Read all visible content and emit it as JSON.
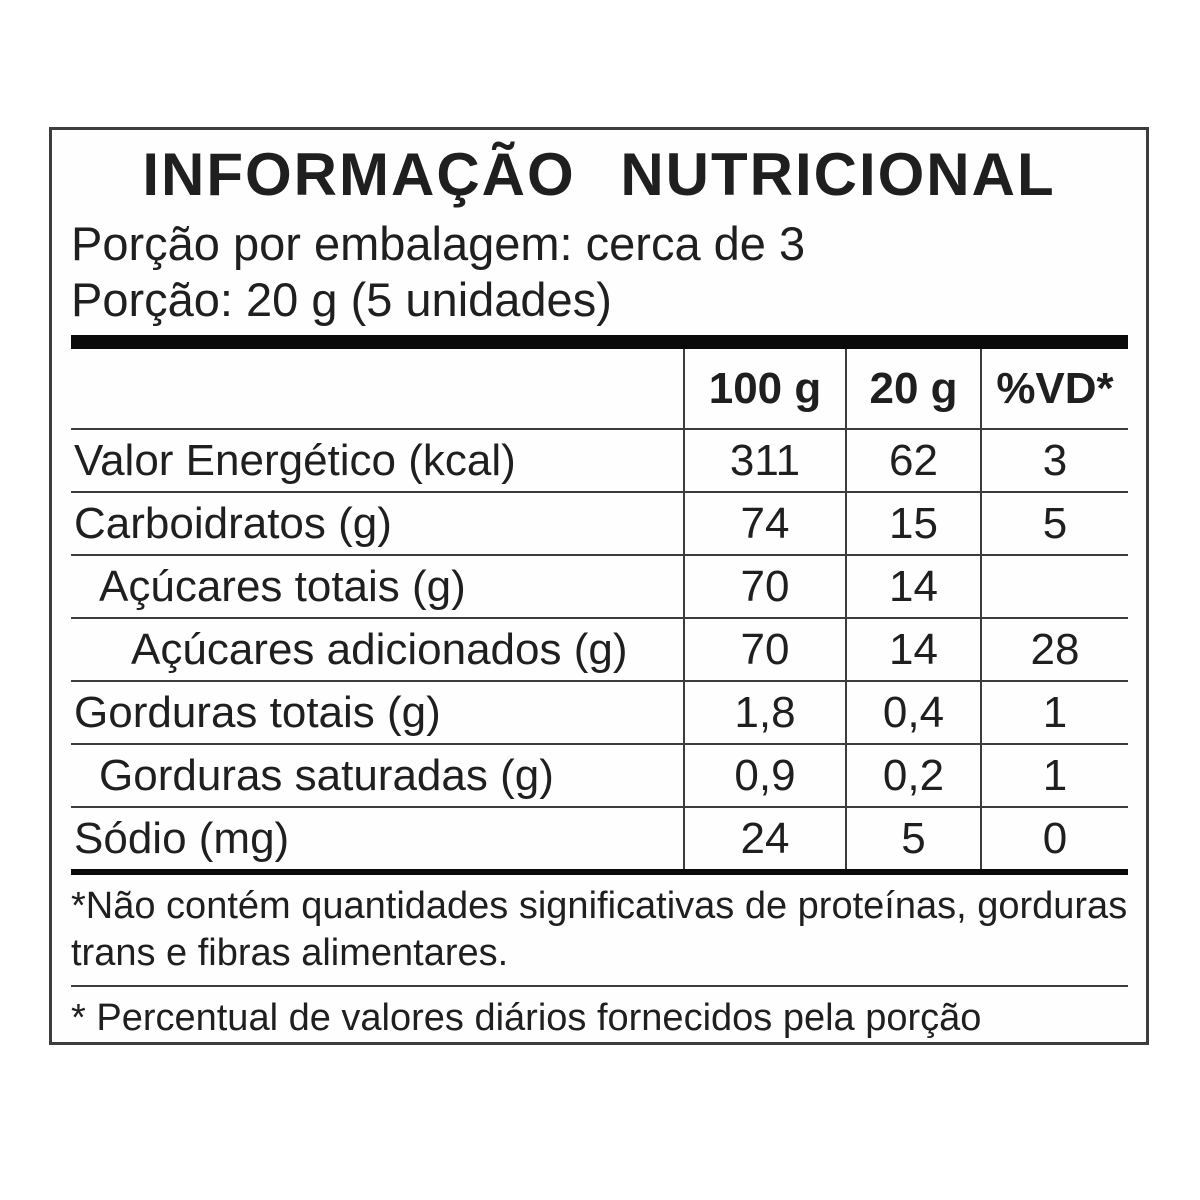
{
  "label": {
    "title": "INFORMAÇÃO  NUTRICIONAL",
    "serving_lines": [
      "Porção por embalagem: cerca de 3",
      "Porção: 20 g (5 unidades)"
    ],
    "table": {
      "columns": [
        "100 g",
        "20 g",
        "%VD*"
      ],
      "rows": [
        {
          "name": "Valor Energético (kcal)",
          "indent": 0,
          "per100g": "311",
          "per20g": "62",
          "vd": "3"
        },
        {
          "name": "Carboidratos (g)",
          "indent": 0,
          "per100g": "74",
          "per20g": "15",
          "vd": "5"
        },
        {
          "name": "Açúcares totais (g)",
          "indent": 1,
          "per100g": "70",
          "per20g": "14",
          "vd": ""
        },
        {
          "name": "Açúcares adicionados (g)",
          "indent": 2,
          "per100g": "70",
          "per20g": "14",
          "vd": "28"
        },
        {
          "name": "Gorduras totais (g)",
          "indent": 0,
          "per100g": "1,8",
          "per20g": "0,4",
          "vd": "1"
        },
        {
          "name": "Gorduras saturadas (g)",
          "indent": 1,
          "per100g": "0,9",
          "per20g": "0,2",
          "vd": "1"
        },
        {
          "name": "Sódio (mg)",
          "indent": 0,
          "per100g": "24",
          "per20g": "5",
          "vd": "0"
        }
      ]
    },
    "footnotes": {
      "no_significant_lines": [
        "*Não contém quantidades significativas de proteínas, gorduras",
        "trans e fibras alimentares."
      ],
      "daily_values": "* Percentual de valores diários fornecidos pela porção"
    },
    "colors": {
      "text": "#1f1f1f",
      "grid_line": "#3c3c3c",
      "thick_bar": "#0a0a0a",
      "background": "#ffffff"
    }
  }
}
